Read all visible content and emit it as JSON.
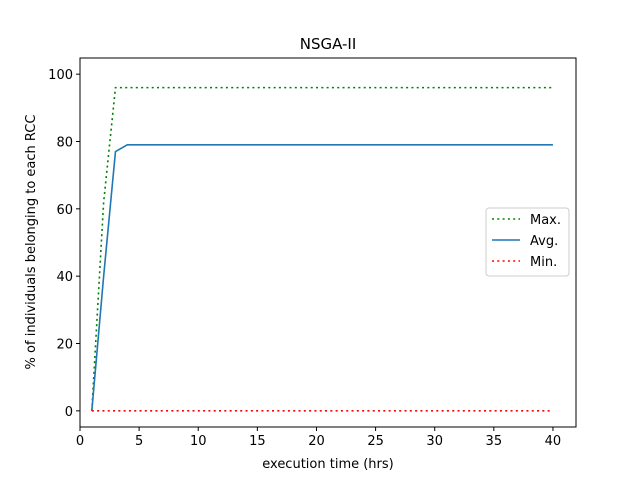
{
  "chart_data": {
    "type": "line",
    "title": "NSGA-II",
    "xlabel": "execution time (hrs)",
    "ylabel": "% of individuals belonging to each RCC",
    "xlim": [
      0,
      41.95
    ],
    "ylim": [
      -4.8,
      104.8
    ],
    "xticks": [
      0,
      5,
      10,
      15,
      20,
      25,
      30,
      35,
      40
    ],
    "yticks": [
      0,
      20,
      40,
      60,
      80,
      100
    ],
    "grid": false,
    "legend": {
      "position": "center-right"
    },
    "series": [
      {
        "name": "Max.",
        "color": "#008000",
        "style": "dotted",
        "points": [
          [
            1,
            0
          ],
          [
            2,
            62
          ],
          [
            3,
            96
          ],
          [
            4,
            96
          ],
          [
            40,
            96
          ]
        ]
      },
      {
        "name": "Avg.",
        "color": "#1f77b4",
        "style": "solid",
        "points": [
          [
            1,
            0
          ],
          [
            2,
            40
          ],
          [
            3,
            77
          ],
          [
            4,
            79
          ],
          [
            40,
            79
          ]
        ]
      },
      {
        "name": "Min.",
        "color": "#ff0000",
        "style": "dotted",
        "points": [
          [
            1,
            0
          ],
          [
            40,
            0
          ]
        ]
      }
    ]
  }
}
